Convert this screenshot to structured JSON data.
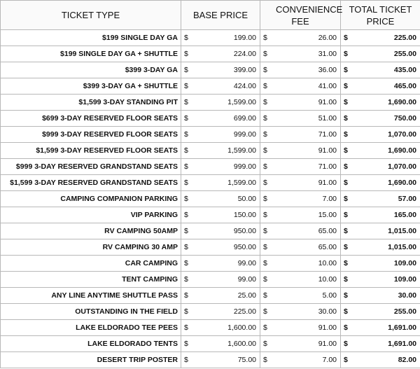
{
  "currency": "$",
  "table": {
    "headers": [
      "TICKET TYPE",
      "BASE PRICE",
      "CONVENIENCE FEE",
      "TOTAL TICKET PRICE"
    ],
    "rows": [
      [
        "$199 SINGLE DAY GA",
        "199.00",
        "26.00",
        "225.00"
      ],
      [
        "$199 SINGLE DAY GA + SHUTTLE",
        "224.00",
        "31.00",
        "255.00"
      ],
      [
        "$399 3-DAY GA",
        "399.00",
        "36.00",
        "435.00"
      ],
      [
        "$399 3-DAY GA + SHUTTLE",
        "424.00",
        "41.00",
        "465.00"
      ],
      [
        "$1,599 3-DAY STANDING PIT",
        "1,599.00",
        "91.00",
        "1,690.00"
      ],
      [
        "$699 3-DAY RESERVED FLOOR SEATS",
        "699.00",
        "51.00",
        "750.00"
      ],
      [
        "$999 3-DAY RESERVED FLOOR SEATS",
        "999.00",
        "71.00",
        "1,070.00"
      ],
      [
        "$1,599 3-DAY RESERVED FLOOR SEATS",
        "1,599.00",
        "91.00",
        "1,690.00"
      ],
      [
        "$999 3-DAY RESERVED GRANDSTAND SEATS",
        "999.00",
        "71.00",
        "1,070.00"
      ],
      [
        "$1,599 3-DAY RESERVED GRANDSTAND SEATS",
        "1,599.00",
        "91.00",
        "1,690.00"
      ],
      [
        "CAMPING COMPANION PARKING",
        "50.00",
        "7.00",
        "57.00"
      ],
      [
        "VIP PARKING",
        "150.00",
        "15.00",
        "165.00"
      ],
      [
        "RV CAMPING 50AMP",
        "950.00",
        "65.00",
        "1,015.00"
      ],
      [
        "RV CAMPING 30 AMP",
        "950.00",
        "65.00",
        "1,015.00"
      ],
      [
        "CAR CAMPING",
        "99.00",
        "10.00",
        "109.00"
      ],
      [
        "TENT CAMPING",
        "99.00",
        "10.00",
        "109.00"
      ],
      [
        "ANY LINE ANYTIME SHUTTLE PASS",
        "25.00",
        "5.00",
        "30.00"
      ],
      [
        "OUTSTANDING IN THE FIELD",
        "225.00",
        "30.00",
        "255.00"
      ],
      [
        "LAKE ELDORADO TEE PEES",
        "1,600.00",
        "91.00",
        "1,691.00"
      ],
      [
        "LAKE ELDORADO TENTS",
        "1,600.00",
        "91.00",
        "1,691.00"
      ],
      [
        "DESERT TRIP POSTER",
        "75.00",
        "7.00",
        "82.00"
      ]
    ]
  }
}
